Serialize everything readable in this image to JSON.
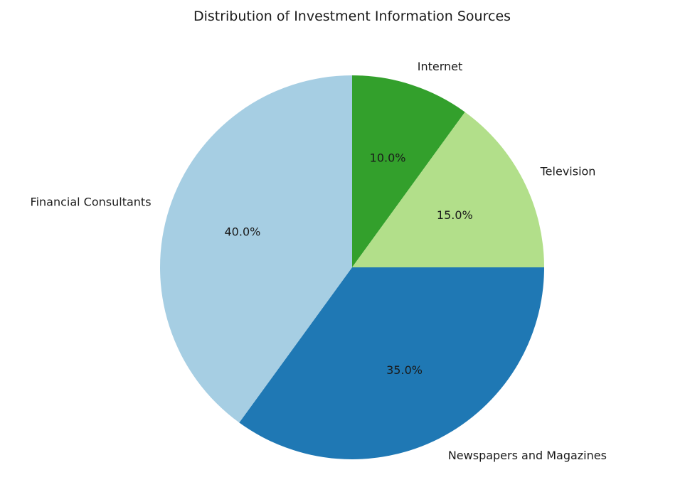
{
  "chart_data": {
    "type": "pie",
    "title": "Distribution of Investment Information Sources",
    "start_angle_deg": 90,
    "direction": "clockwise",
    "slices": [
      {
        "label": "Internet",
        "value": 10,
        "percent_label": "10.0%",
        "color": "#33a02c"
      },
      {
        "label": "Television",
        "value": 15,
        "percent_label": "15.0%",
        "color": "#b2df8a"
      },
      {
        "label": "Newspapers and Magazines",
        "value": 35,
        "percent_label": "35.0%",
        "color": "#1f78b4"
      },
      {
        "label": "Financial Consultants",
        "value": 40,
        "percent_label": "40.0%",
        "color": "#a6cee3"
      }
    ]
  }
}
